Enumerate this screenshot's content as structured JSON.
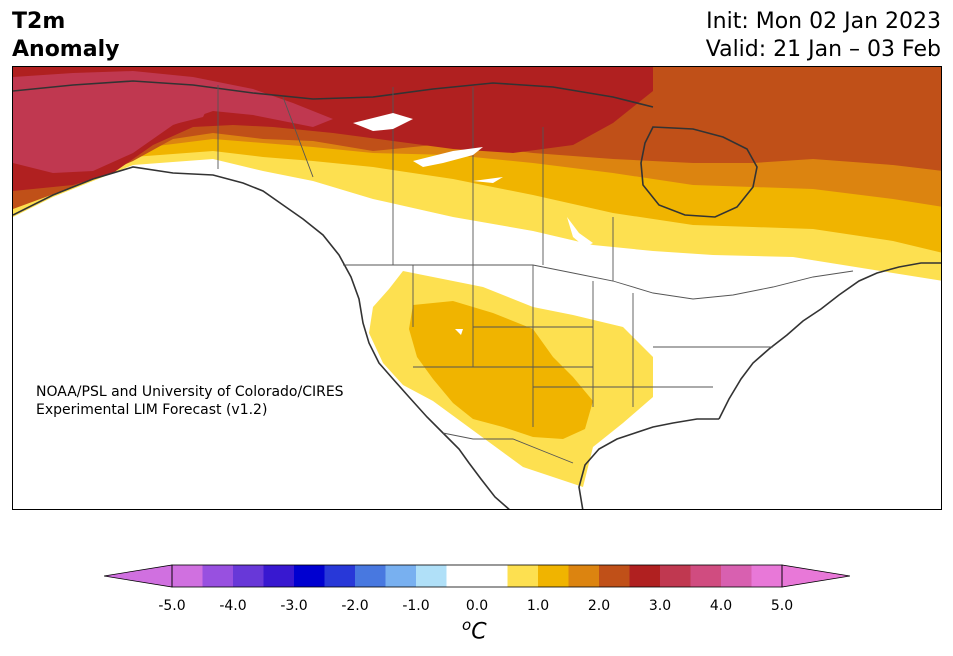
{
  "header": {
    "title_line1": "T2m",
    "title_line2": "Anomaly",
    "init": "Init: Mon 02 Jan 2023",
    "valid": "Valid: 21 Jan – 03 Feb"
  },
  "credit": {
    "line1": "NOAA/PSL and University of Colorado/CIRES",
    "line2": "Experimental LIM Forecast (v1.2)"
  },
  "colorbar": {
    "unit_base": "C",
    "unit_sup": "o",
    "ticks": [
      "-5.0",
      "-4.0",
      "-3.0",
      "-2.0",
      "-1.0",
      "0.0",
      "1.0",
      "2.0",
      "3.0",
      "4.0",
      "5.0"
    ],
    "colors": [
      "#d070e0",
      "#9850e0",
      "#6838d8",
      "#3818d0",
      "#0000d0",
      "#2838d8",
      "#4878e0",
      "#78b0f0",
      "#b0e0f8",
      "#ffffff",
      "#ffffff",
      "#fde050",
      "#f0b400",
      "#dc8410",
      "#c05018",
      "#b02020",
      "#c03850",
      "#d04c80",
      "#d860b0",
      "#e878d8"
    ],
    "under_color": "#d070e0",
    "over_color": "#e878d8"
  }
}
